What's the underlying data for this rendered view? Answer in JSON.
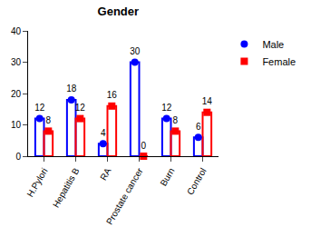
{
  "chart_data": {
    "type": "bar",
    "title": "Gender",
    "categories": [
      "H.Pylori",
      "Hepatitis B",
      "RA",
      "Prostate cancer",
      "Burn",
      "Control"
    ],
    "series": [
      {
        "name": "Male",
        "color": "#0000ff",
        "marker": "circle",
        "values": [
          12,
          18,
          4,
          30,
          12,
          6
        ]
      },
      {
        "name": "Female",
        "color": "#ff0000",
        "marker": "square",
        "values": [
          8,
          12,
          16,
          0,
          8,
          14
        ]
      }
    ],
    "ylim": [
      0,
      40
    ],
    "yticks": [
      0,
      10,
      20,
      30,
      40
    ],
    "grid": false,
    "legend": "upper right",
    "data_labels": true
  }
}
